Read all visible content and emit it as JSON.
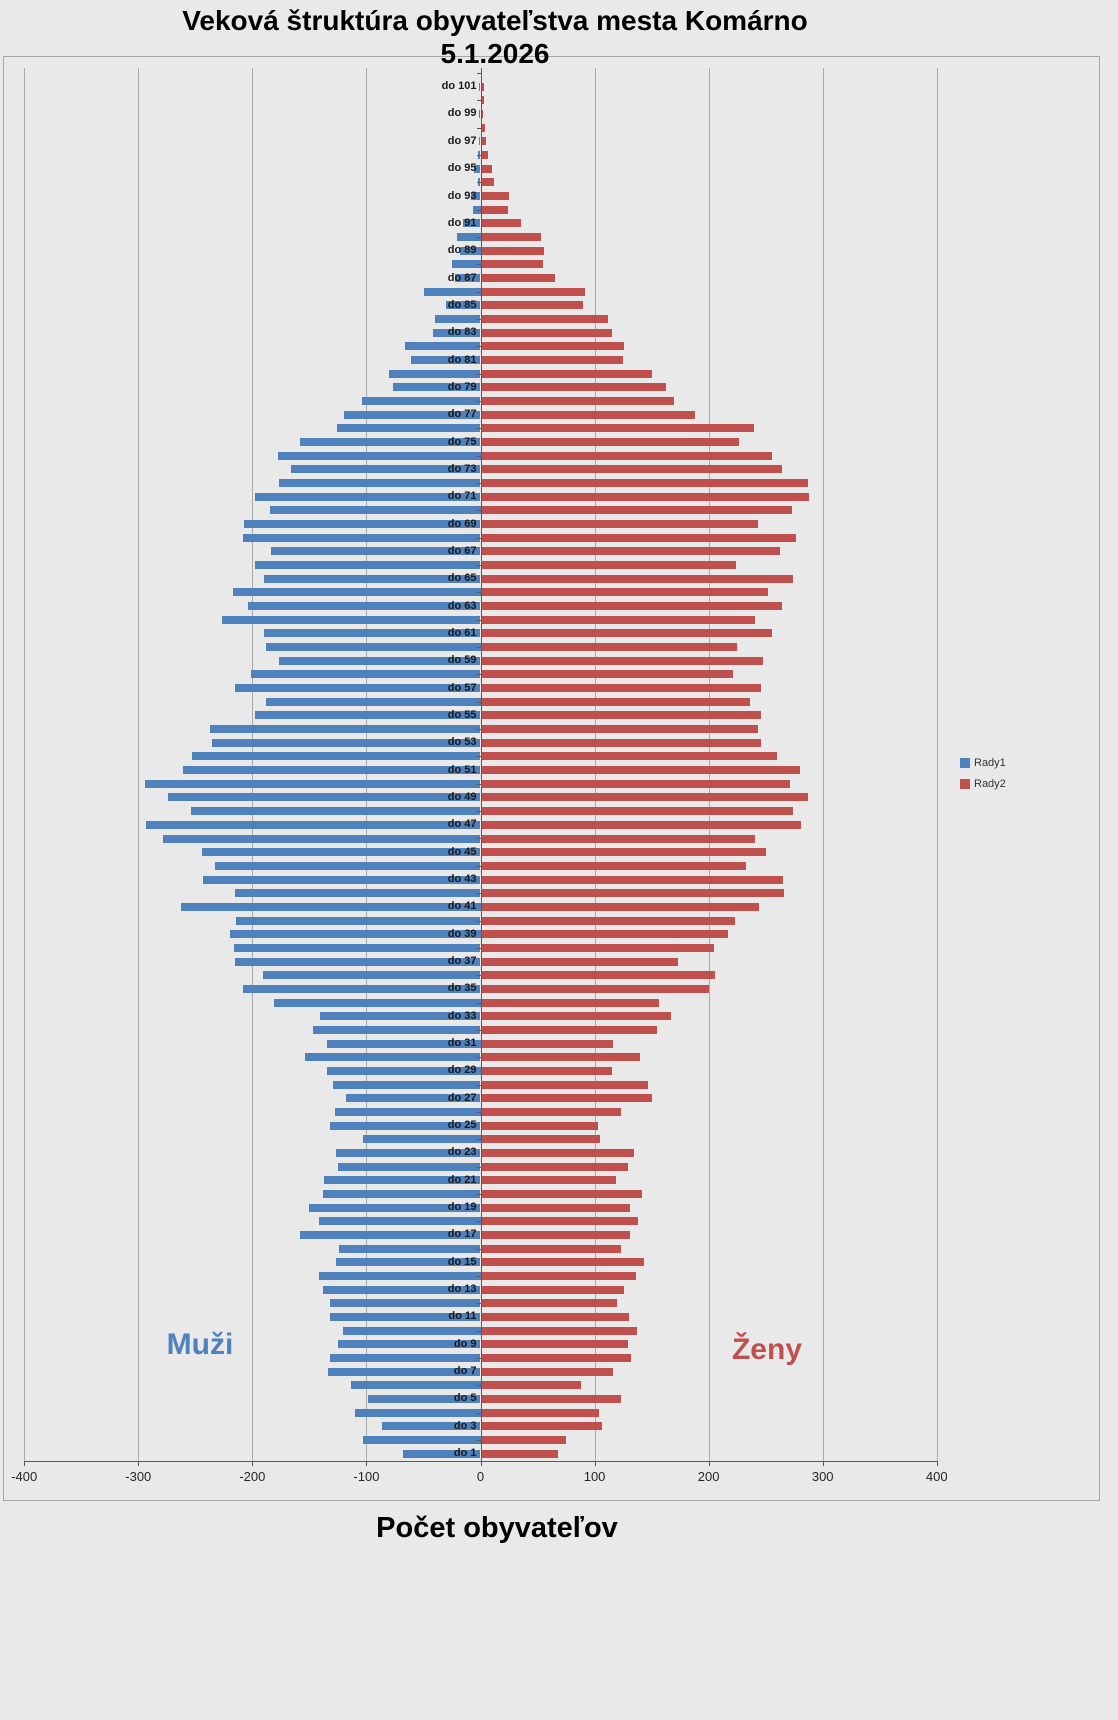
{
  "title": {
    "line1": "Veková štruktúra obyvateľstva mesta Komárno",
    "line2": "5.1.2026"
  },
  "xlabel": "Počet obyvateľov",
  "side_labels": {
    "left": "Muži",
    "right": "Ženy"
  },
  "legend": [
    {
      "label": "Rady1",
      "color": "#4f81bd"
    },
    {
      "label": "Rady2",
      "color": "#c0504d"
    }
  ],
  "colors": {
    "men": "#4f81bd",
    "women": "#c0504d",
    "background": "#e9e9e9"
  },
  "chart_data": {
    "type": "bar",
    "subtype": "population-pyramid",
    "title": "Veková štruktúra obyvateľstva mesta Komárno 5.1.2026",
    "xlabel": "Počet obyvateľov",
    "xlim": [
      -400,
      400
    ],
    "x_ticks": [
      "-400",
      "-300",
      "-200",
      "-100",
      "0",
      "100",
      "200",
      "300",
      "400"
    ],
    "grid": true,
    "legend_position": "right",
    "series": [
      {
        "name": "Rady1",
        "side": "left",
        "color": "#4f81bd"
      },
      {
        "name": "Rady2",
        "side": "right",
        "color": "#c0504d"
      }
    ],
    "rows": [
      {
        "label": "do 101",
        "rady1": -1,
        "rady2": 2
      },
      {
        "label": "",
        "rady1": 0,
        "rady2": 2
      },
      {
        "label": "do 99",
        "rady1": -1,
        "rady2": 1
      },
      {
        "label": "",
        "rady1": 0,
        "rady2": 3
      },
      {
        "label": "do 97",
        "rady1": -1,
        "rady2": 4
      },
      {
        "label": "",
        "rady1": -2,
        "rady2": 6
      },
      {
        "label": "do 95",
        "rady1": -6,
        "rady2": 9
      },
      {
        "label": "",
        "rady1": -2,
        "rady2": 11
      },
      {
        "label": "do 93",
        "rady1": -8,
        "rady2": 24
      },
      {
        "label": "",
        "rady1": -7,
        "rady2": 23
      },
      {
        "label": "do 91",
        "rady1": -15,
        "rady2": 35
      },
      {
        "label": "",
        "rady1": -21,
        "rady2": 52
      },
      {
        "label": "do 89",
        "rady1": -18,
        "rady2": 55
      },
      {
        "label": "",
        "rady1": -25,
        "rady2": 54
      },
      {
        "label": "do 87",
        "rady1": -22,
        "rady2": 64
      },
      {
        "label": "",
        "rady1": -50,
        "rady2": 91
      },
      {
        "label": "do 85",
        "rady1": -30,
        "rady2": 89
      },
      {
        "label": "",
        "rady1": -40,
        "rady2": 111
      },
      {
        "label": "do 83",
        "rady1": -42,
        "rady2": 114
      },
      {
        "label": "",
        "rady1": -66,
        "rady2": 125
      },
      {
        "label": "do 81",
        "rady1": -61,
        "rady2": 124
      },
      {
        "label": "",
        "rady1": -80,
        "rady2": 149
      },
      {
        "label": "do 79",
        "rady1": -77,
        "rady2": 162
      },
      {
        "label": "",
        "rady1": -104,
        "rady2": 169
      },
      {
        "label": "do 77",
        "rady1": -120,
        "rady2": 187
      },
      {
        "label": "",
        "rady1": -126,
        "rady2": 239
      },
      {
        "label": "do 75",
        "rady1": -158,
        "rady2": 226
      },
      {
        "label": "",
        "rady1": -178,
        "rady2": 255
      },
      {
        "label": "do 73",
        "rady1": -166,
        "rady2": 263
      },
      {
        "label": "",
        "rady1": -177,
        "rady2": 286
      },
      {
        "label": "do 71",
        "rady1": -198,
        "rady2": 287
      },
      {
        "label": "",
        "rady1": -185,
        "rady2": 272
      },
      {
        "label": "do 69",
        "rady1": -207,
        "rady2": 242
      },
      {
        "label": "",
        "rady1": -208,
        "rady2": 276
      },
      {
        "label": "do 67",
        "rady1": -184,
        "rady2": 262
      },
      {
        "label": "",
        "rady1": -198,
        "rady2": 223
      },
      {
        "label": "do 65",
        "rady1": -190,
        "rady2": 273
      },
      {
        "label": "",
        "rady1": -217,
        "rady2": 251
      },
      {
        "label": "do 63",
        "rady1": -204,
        "rady2": 263
      },
      {
        "label": "",
        "rady1": -227,
        "rady2": 240
      },
      {
        "label": "do 61",
        "rady1": -190,
        "rady2": 255
      },
      {
        "label": "",
        "rady1": -188,
        "rady2": 224
      },
      {
        "label": "do 59",
        "rady1": -177,
        "rady2": 247
      },
      {
        "label": "",
        "rady1": -201,
        "rady2": 220
      },
      {
        "label": "do 57",
        "rady1": -215,
        "rady2": 245
      },
      {
        "label": "",
        "rady1": -188,
        "rady2": 235
      },
      {
        "label": "do 55",
        "rady1": -198,
        "rady2": 245
      },
      {
        "label": "",
        "rady1": -237,
        "rady2": 242
      },
      {
        "label": "do 53",
        "rady1": -235,
        "rady2": 245
      },
      {
        "label": "",
        "rady1": -253,
        "rady2": 259
      },
      {
        "label": "do 51",
        "rady1": -261,
        "rady2": 279
      },
      {
        "label": "",
        "rady1": -294,
        "rady2": 270
      },
      {
        "label": "do 49",
        "rady1": -274,
        "rady2": 286
      },
      {
        "label": "",
        "rady1": -254,
        "rady2": 273
      },
      {
        "label": "do 47",
        "rady1": -293,
        "rady2": 280
      },
      {
        "label": "",
        "rady1": -278,
        "rady2": 240
      },
      {
        "label": "do 45",
        "rady1": -244,
        "rady2": 249
      },
      {
        "label": "",
        "rady1": -233,
        "rady2": 232
      },
      {
        "label": "do 43",
        "rady1": -243,
        "rady2": 264
      },
      {
        "label": "",
        "rady1": -215,
        "rady2": 265
      },
      {
        "label": "do 41",
        "rady1": -263,
        "rady2": 243
      },
      {
        "label": "",
        "rady1": -214,
        "rady2": 222
      },
      {
        "label": "do 39",
        "rady1": -220,
        "rady2": 216
      },
      {
        "label": "",
        "rady1": -216,
        "rady2": 204
      },
      {
        "label": "do 37",
        "rady1": -215,
        "rady2": 172
      },
      {
        "label": "",
        "rady1": -191,
        "rady2": 205
      },
      {
        "label": "do 35",
        "rady1": -208,
        "rady2": 199
      },
      {
        "label": "",
        "rady1": -181,
        "rady2": 156
      },
      {
        "label": "do 33",
        "rady1": -141,
        "rady2": 166
      },
      {
        "label": "",
        "rady1": -147,
        "rady2": 154
      },
      {
        "label": "do 31",
        "rady1": -135,
        "rady2": 115
      },
      {
        "label": "",
        "rady1": -154,
        "rady2": 139
      },
      {
        "label": "do 29",
        "rady1": -135,
        "rady2": 114
      },
      {
        "label": "",
        "rady1": -129,
        "rady2": 146
      },
      {
        "label": "do 27",
        "rady1": -118,
        "rady2": 149
      },
      {
        "label": "",
        "rady1": -128,
        "rady2": 122
      },
      {
        "label": "do 25",
        "rady1": -132,
        "rady2": 102
      },
      {
        "label": "",
        "rady1": -103,
        "rady2": 104
      },
      {
        "label": "do 23",
        "rady1": -127,
        "rady2": 134
      },
      {
        "label": "",
        "rady1": -125,
        "rady2": 128
      },
      {
        "label": "do 21",
        "rady1": -137,
        "rady2": 118
      },
      {
        "label": "",
        "rady1": -138,
        "rady2": 141
      },
      {
        "label": "do 19",
        "rady1": -150,
        "rady2": 130
      },
      {
        "label": "",
        "rady1": -142,
        "rady2": 137
      },
      {
        "label": "do 17",
        "rady1": -158,
        "rady2": 130
      },
      {
        "label": "",
        "rady1": -124,
        "rady2": 122
      },
      {
        "label": "do 15",
        "rady1": -127,
        "rady2": 142
      },
      {
        "label": "",
        "rady1": -142,
        "rady2": 135
      },
      {
        "label": "do 13",
        "rady1": -138,
        "rady2": 125
      },
      {
        "label": "",
        "rady1": -132,
        "rady2": 119
      },
      {
        "label": "do 11",
        "rady1": -132,
        "rady2": 129
      },
      {
        "label": "",
        "rady1": -121,
        "rady2": 136
      },
      {
        "label": "do 9",
        "rady1": -125,
        "rady2": 128
      },
      {
        "label": "",
        "rady1": -132,
        "rady2": 131
      },
      {
        "label": "do 7",
        "rady1": -134,
        "rady2": 115
      },
      {
        "label": "",
        "rady1": -114,
        "rady2": 87
      },
      {
        "label": "do 5",
        "rady1": -99,
        "rady2": 122
      },
      {
        "label": "",
        "rady1": -110,
        "rady2": 103
      },
      {
        "label": "do 3",
        "rady1": -86,
        "rady2": 106
      },
      {
        "label": "",
        "rady1": -103,
        "rady2": 74
      },
      {
        "label": "do 1",
        "rady1": -68,
        "rady2": 67
      }
    ]
  }
}
